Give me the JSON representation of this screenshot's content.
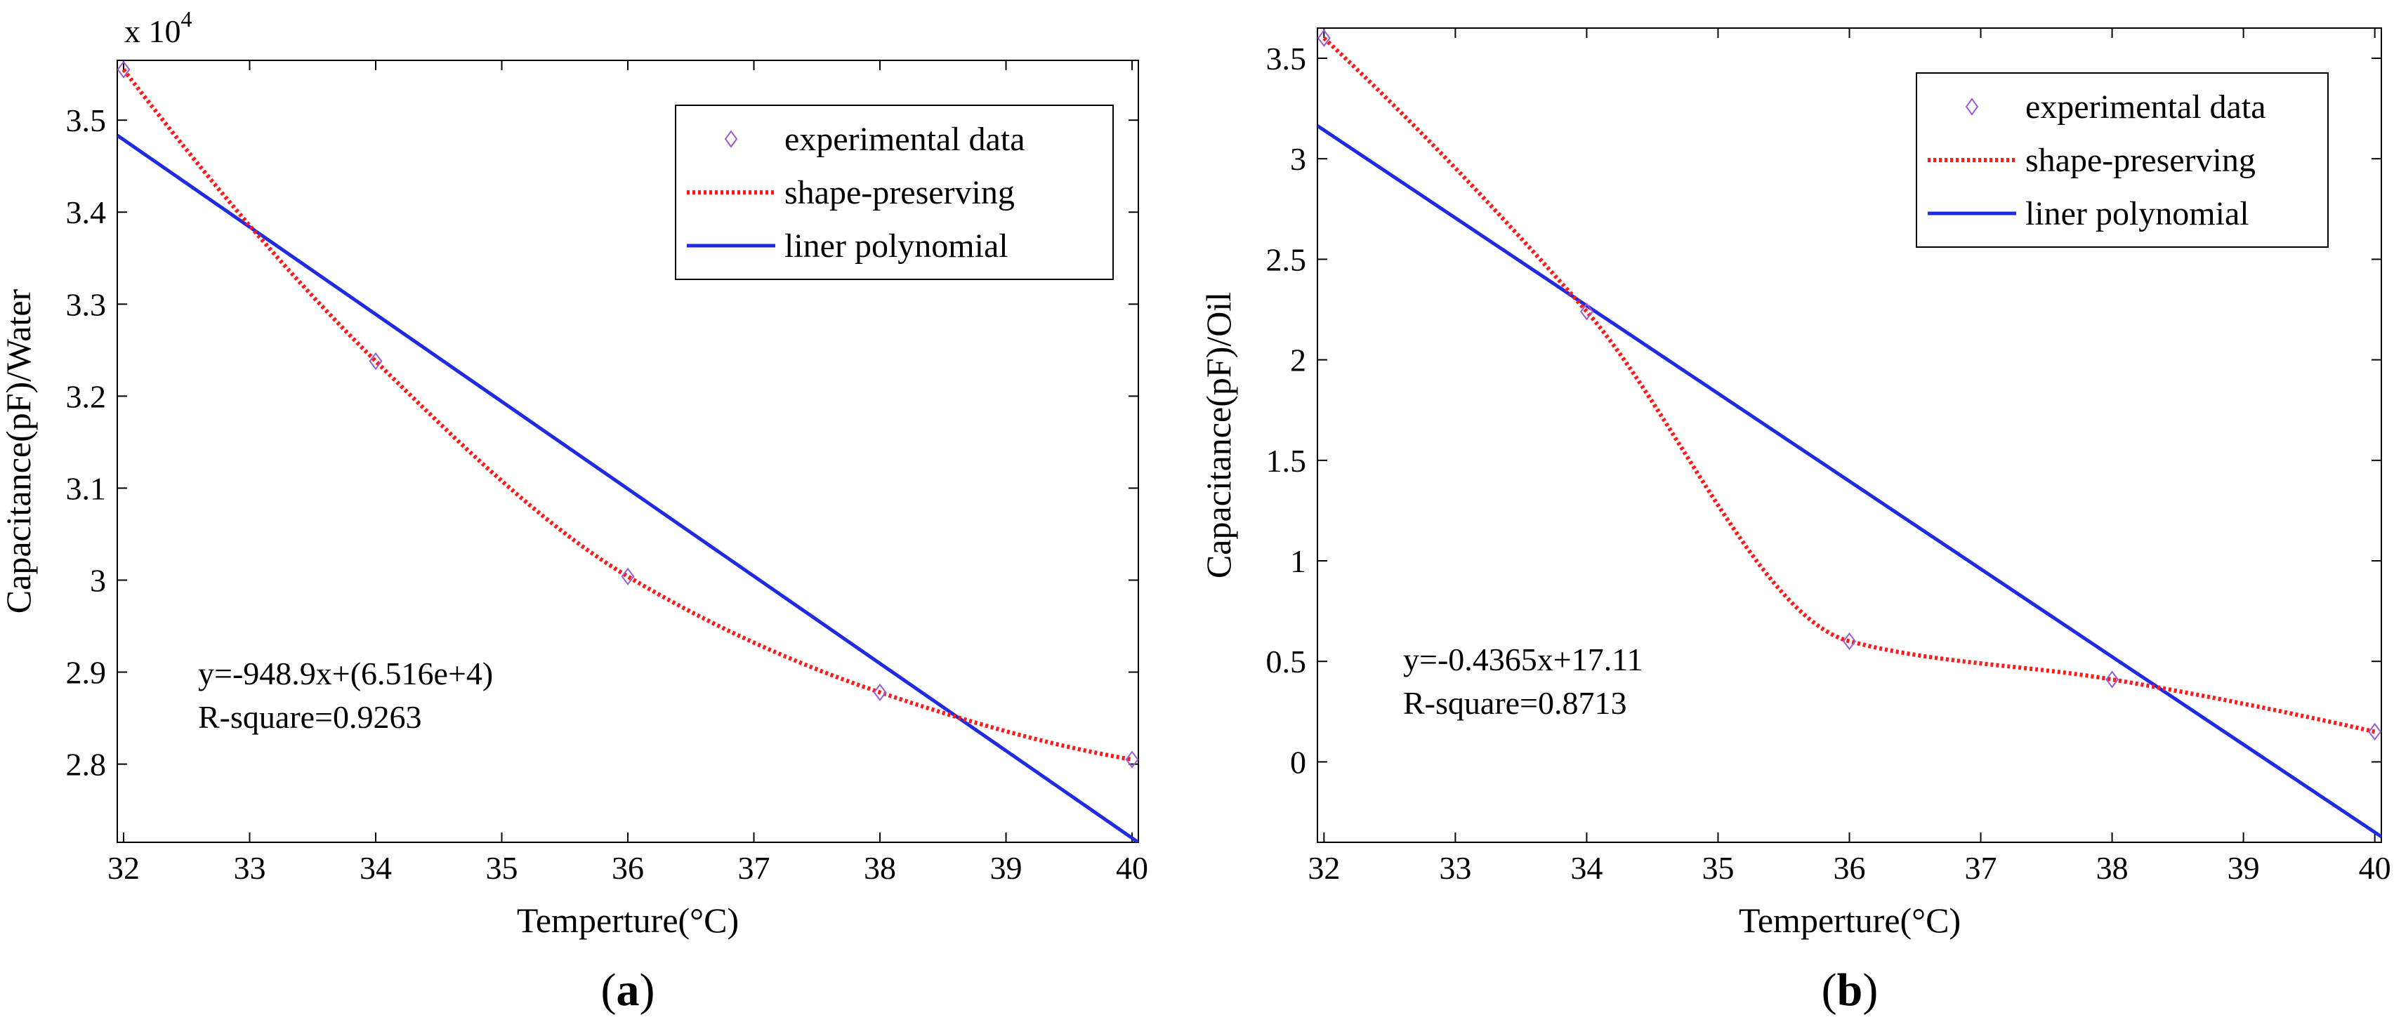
{
  "chart_data": [
    {
      "type": "line",
      "panel_label": "a",
      "xlabel": "Temperture(°C)",
      "ylabel": "Capacitance(pF)/Water",
      "exponent_label": "x 10",
      "exponent_power": "4",
      "xlim": [
        31.95,
        40.05
      ],
      "ylim": [
        2.715,
        3.565
      ],
      "xticks": [
        32,
        33,
        34,
        35,
        36,
        37,
        38,
        39,
        40
      ],
      "yticks": [
        2.8,
        2.9,
        3.0,
        3.1,
        3.2,
        3.3,
        3.4,
        3.5
      ],
      "ytick_labels": [
        "2.8",
        "2.9",
        "3",
        "3.1",
        "3.2",
        "3.3",
        "3.4",
        "3.5"
      ],
      "legend_position": "top-right",
      "legend": [
        "experimental data",
        "shape-preserving",
        "liner polynomial"
      ],
      "series": [
        {
          "name": "experimental data",
          "kind": "markers",
          "color": "#9a5ccf",
          "x": [
            32,
            34,
            36,
            38,
            40
          ],
          "y": [
            3.555,
            3.238,
            3.004,
            2.878,
            2.805
          ]
        },
        {
          "name": "shape-preserving",
          "kind": "dotted",
          "color": "#ff1a1a",
          "x": [
            32,
            34,
            36,
            38,
            40
          ],
          "y": [
            3.555,
            3.238,
            3.004,
            2.878,
            2.805
          ]
        },
        {
          "name": "liner polynomial",
          "kind": "line",
          "color": "#1f2be0",
          "x": [
            31.95,
            40.05
          ],
          "y": [
            3.4835,
            2.7149
          ]
        }
      ],
      "annotations": [
        "y=-948.9x+(6.516e+4)",
        "R-square=0.9263"
      ]
    },
    {
      "type": "line",
      "panel_label": "b",
      "xlabel": "Temperture(°C)",
      "ylabel": "Capacitance(pF)/Oil",
      "xlim": [
        31.95,
        40.05
      ],
      "ylim": [
        -0.4,
        3.65
      ],
      "xticks": [
        32,
        33,
        34,
        35,
        36,
        37,
        38,
        39,
        40
      ],
      "yticks": [
        0,
        0.5,
        1,
        1.5,
        2,
        2.5,
        3,
        3.5
      ],
      "ytick_labels": [
        "0",
        "0.5",
        "1",
        "1.5",
        "2",
        "2.5",
        "3",
        "3.5"
      ],
      "legend_position": "top-right",
      "legend": [
        "experimental data",
        "shape-preserving",
        "liner polynomial"
      ],
      "series": [
        {
          "name": "experimental data",
          "kind": "markers",
          "color": "#9a5ccf",
          "x": [
            32,
            34,
            36,
            38,
            40
          ],
          "y": [
            3.6,
            2.24,
            0.6,
            0.41,
            0.15
          ]
        },
        {
          "name": "shape-preserving",
          "kind": "dotted",
          "color": "#ff1a1a",
          "x": [
            32,
            34,
            36,
            38,
            40
          ],
          "y": [
            3.6,
            2.24,
            0.6,
            0.41,
            0.15
          ]
        },
        {
          "name": "liner polynomial",
          "kind": "line",
          "color": "#1f2be0",
          "x": [
            31.95,
            40.05
          ],
          "y": [
            3.164,
            -0.3719
          ]
        }
      ],
      "annotations": [
        "y=-0.4365x+17.11",
        "R-square=0.8713"
      ]
    }
  ]
}
